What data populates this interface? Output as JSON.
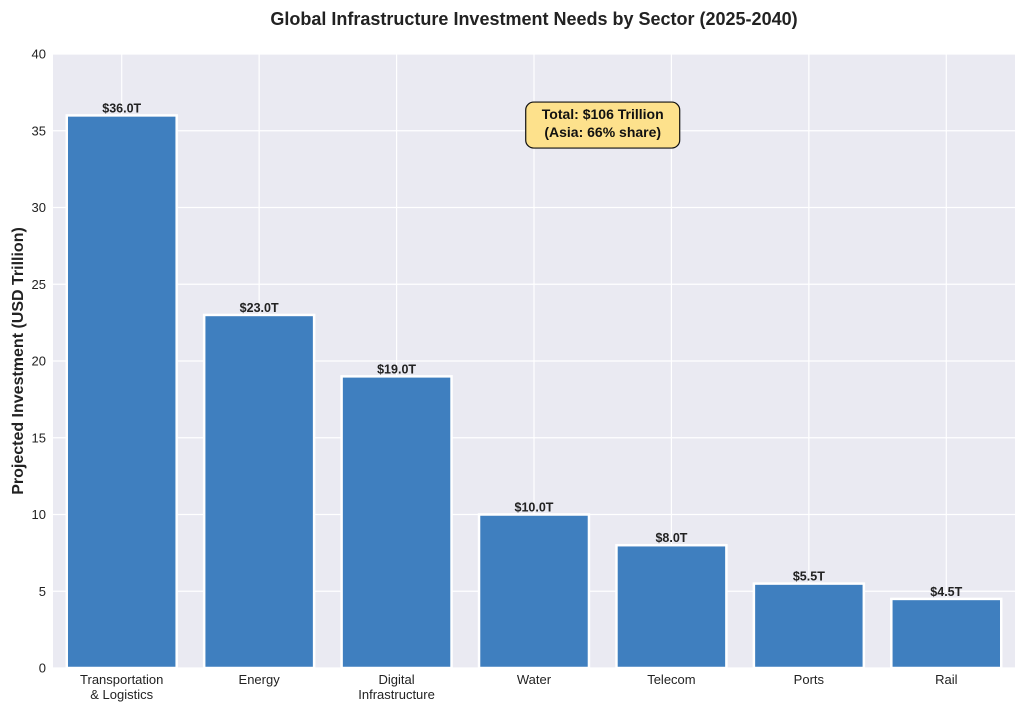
{
  "chart_data": {
    "type": "bar",
    "title": "Global Infrastructure Investment Needs by Sector (2025-2040)",
    "xlabel": "",
    "ylabel": "Projected Investment (USD Trillion)",
    "categories": [
      [
        "Transportation",
        "& Logistics"
      ],
      [
        "Energy"
      ],
      [
        "Digital",
        "Infrastructure"
      ],
      [
        "Water"
      ],
      [
        "Telecom"
      ],
      [
        "Ports"
      ],
      [
        "Rail"
      ]
    ],
    "values": [
      36.0,
      23.0,
      19.0,
      10.0,
      8.0,
      5.5,
      4.5
    ],
    "value_labels": [
      "$36.0T",
      "$23.0T",
      "$19.0T",
      "$10.0T",
      "$8.0T",
      "$5.5T",
      "$4.5T"
    ],
    "ylim": [
      0,
      40
    ],
    "yticks": [
      0,
      5,
      10,
      15,
      20,
      25,
      30,
      35,
      40
    ],
    "grid": true,
    "annotation": {
      "lines": [
        "Total: $106 Trillion",
        "(Asia: 66% share)"
      ],
      "x_category_index": 3.5,
      "y_value": 35.5
    },
    "colors": {
      "bar": "#3f7fbf",
      "bar_edge": "#ffffff",
      "plot_background": "#eaeaf2",
      "grid": "#ffffff",
      "annotation_fill": "#fde18c",
      "annotation_edge": "#111111"
    }
  }
}
